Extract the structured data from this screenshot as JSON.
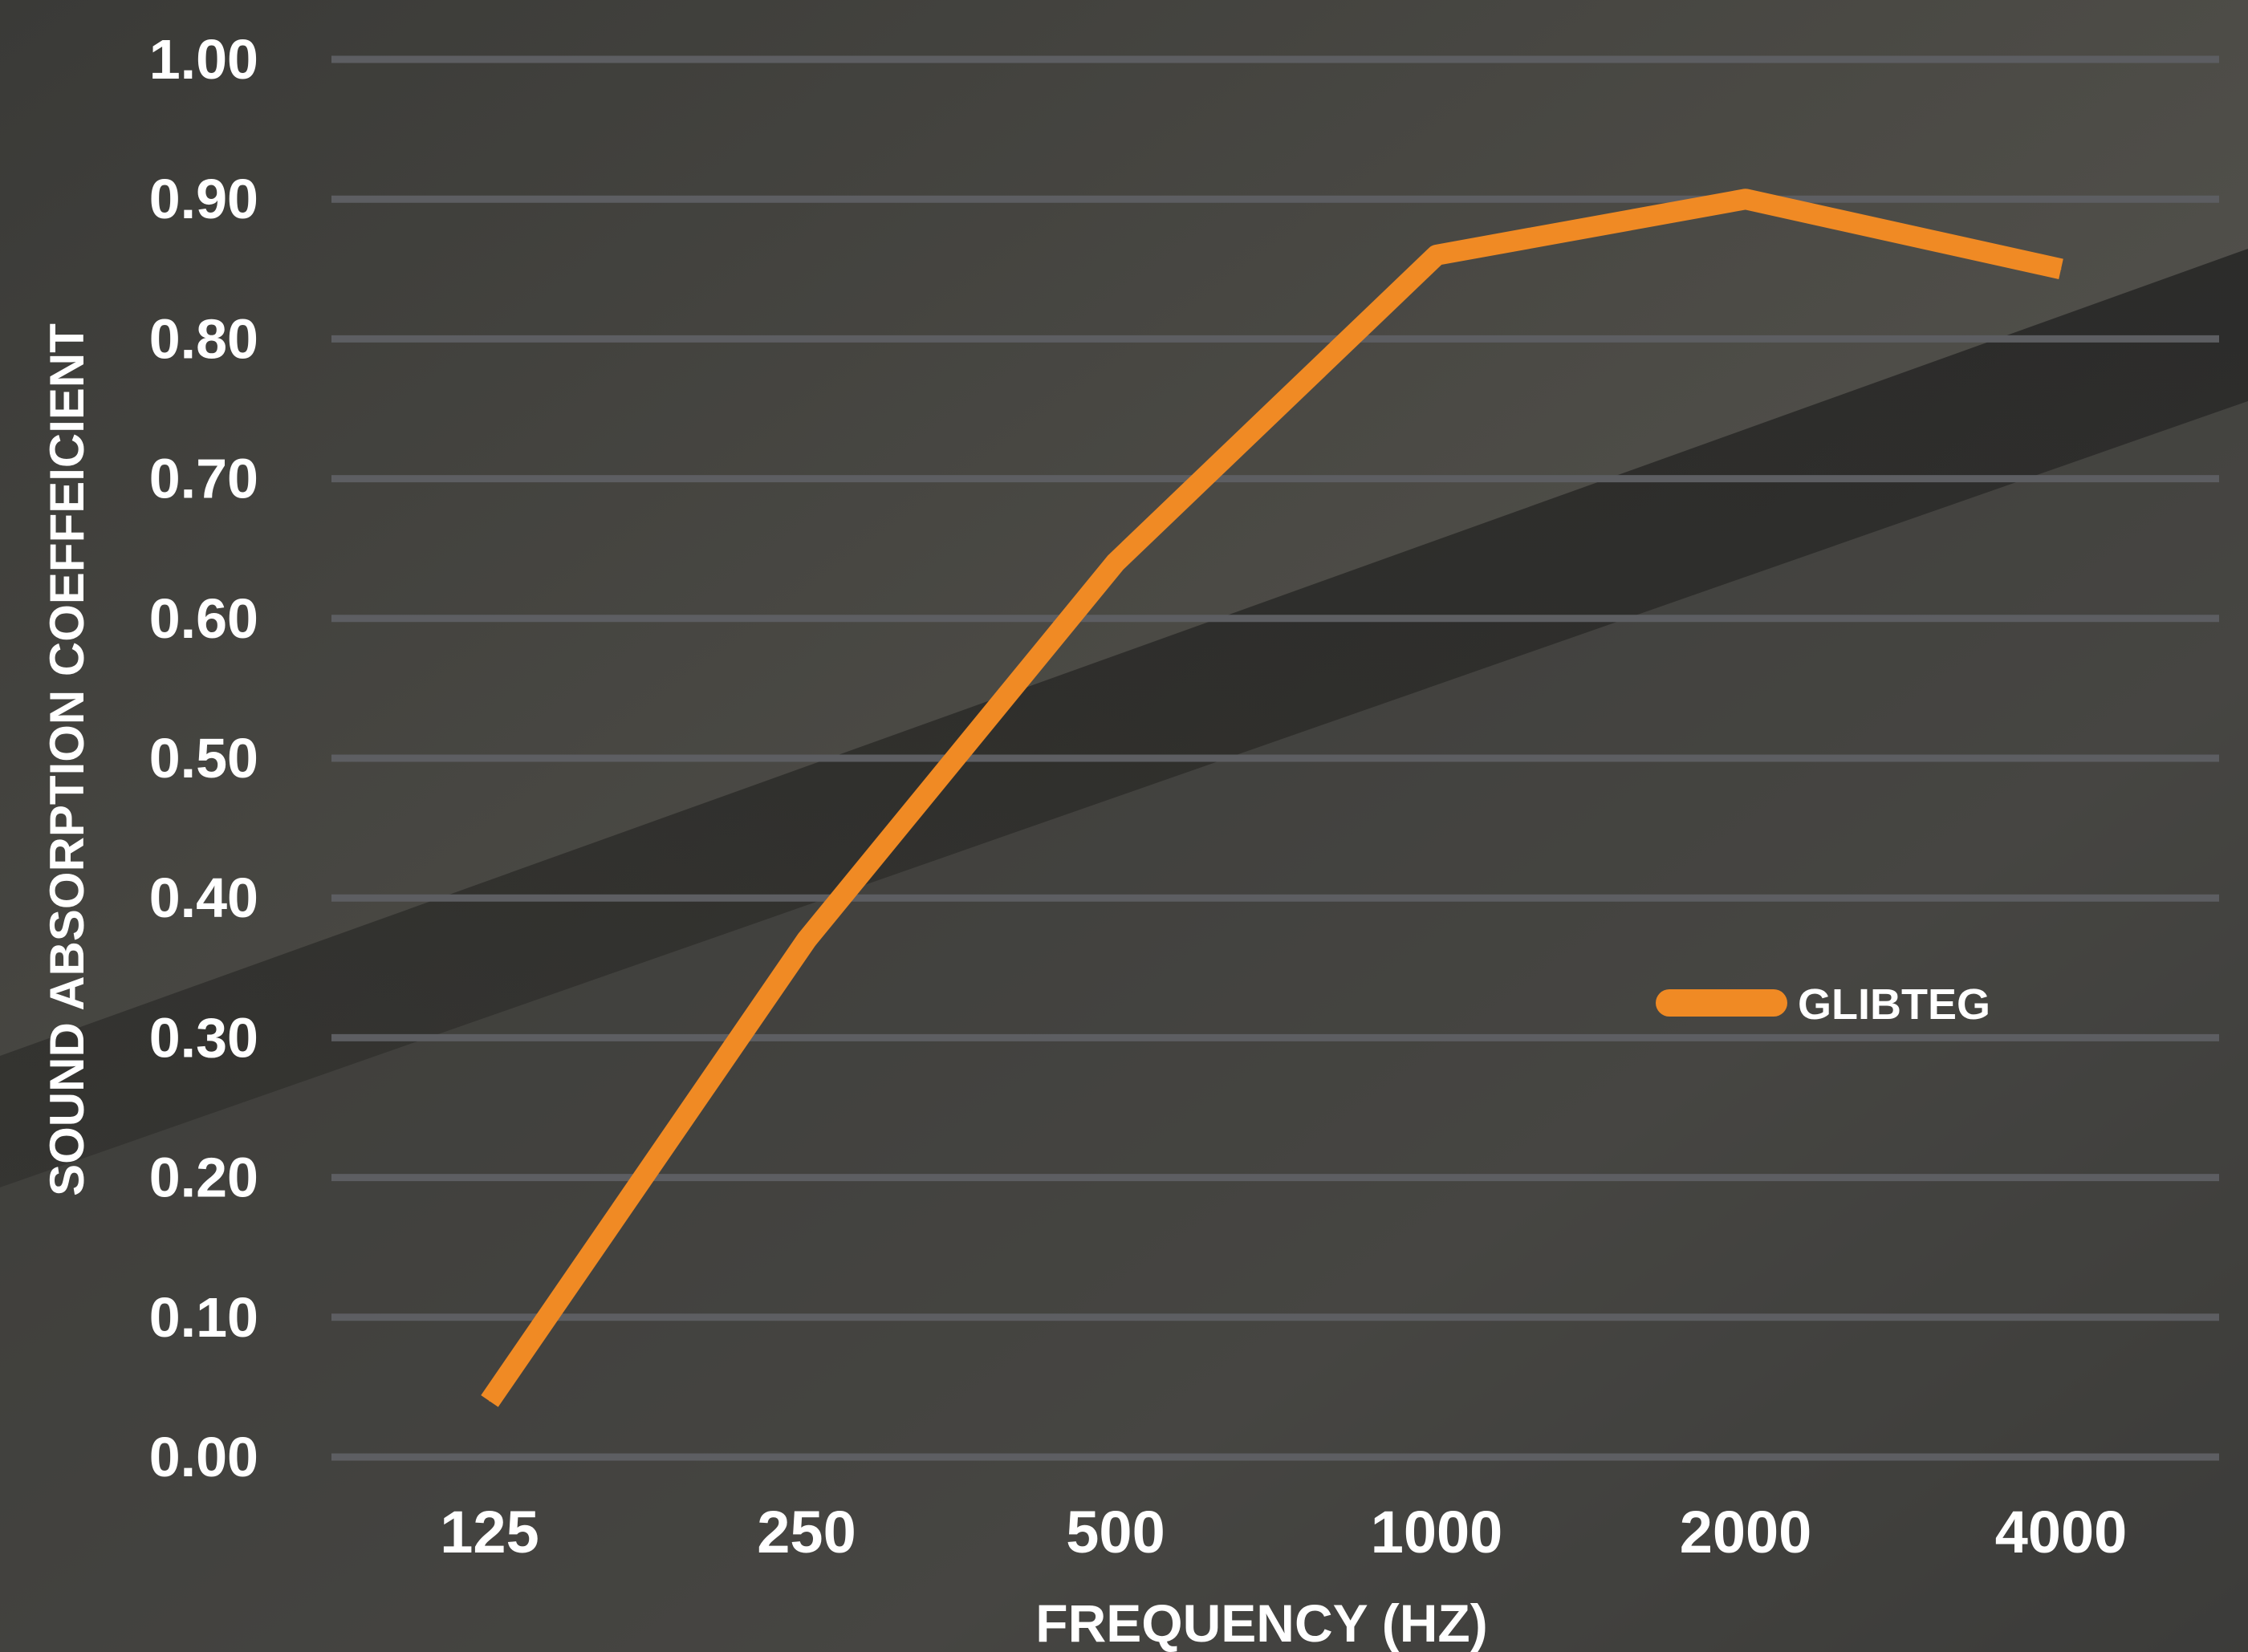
{
  "colors": {
    "background_light": "#4f4e49",
    "background_dark": "#2c2c2a",
    "gridline": "#5d5e62",
    "series_line": "#f08a24",
    "text": "#ffffff"
  },
  "chart_data": {
    "type": "line",
    "title": "",
    "xlabel": "FREQUENCY (HZ)",
    "ylabel": "SOUND ABSORPTION COEFFEICIENT",
    "categories": [
      "125",
      "250",
      "500",
      "1000",
      "2000",
      "4000"
    ],
    "y_ticks": [
      "0.00",
      "0.10",
      "0.20",
      "0.30",
      "0.40",
      "0.50",
      "0.60",
      "0.70",
      "0.80",
      "0.90",
      "1.00"
    ],
    "ylim": [
      0,
      1
    ],
    "grid": true,
    "legend_position": "right",
    "series": [
      {
        "name": "GLIBTEG",
        "color": "#f08a24",
        "values": [
          0.04,
          0.37,
          0.64,
          0.86,
          0.9,
          0.85
        ]
      }
    ]
  }
}
